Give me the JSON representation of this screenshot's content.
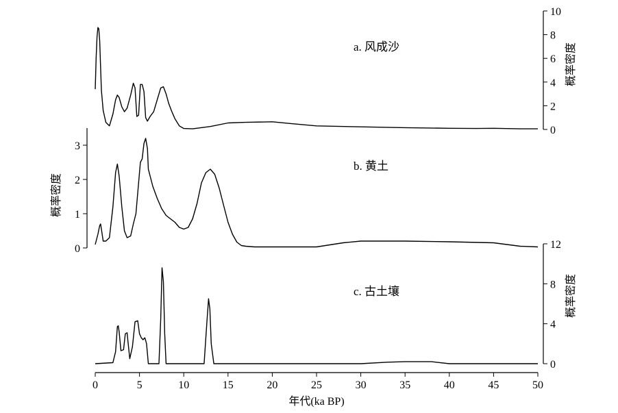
{
  "chart_data": {
    "type": "line",
    "xlabel": "年代(ka BP)",
    "xlim": [
      0,
      50
    ],
    "xticks": [
      "0",
      "5",
      "10",
      "15",
      "20",
      "25",
      "30",
      "35",
      "40",
      "45",
      "50"
    ],
    "panels": [
      {
        "title": "a. 风成沙",
        "ylabel": "概率密度",
        "yaxis_side": "right",
        "ylim": [
          0,
          10
        ],
        "yticks": [
          "0",
          "2",
          "4",
          "6",
          "8",
          "10"
        ],
        "x": [
          0.0,
          0.1,
          0.2,
          0.3,
          0.4,
          0.5,
          0.6,
          0.7,
          0.9,
          1.2,
          1.6,
          2.0,
          2.3,
          2.5,
          2.7,
          3.0,
          3.3,
          3.6,
          4.0,
          4.3,
          4.5,
          4.7,
          4.9,
          5.1,
          5.3,
          5.5,
          5.7,
          5.9,
          6.2,
          6.6,
          7.0,
          7.4,
          7.7,
          8.0,
          8.3,
          8.6,
          9.0,
          9.5,
          10.0,
          11.0,
          13.0,
          15.0,
          17.0,
          20.0,
          22.0,
          25.0,
          30.0,
          35.0,
          40.0,
          43.0,
          45.0,
          48.0,
          50.0
        ],
        "values": [
          3.4,
          6.0,
          7.8,
          8.6,
          8.5,
          7.5,
          5.3,
          3.3,
          1.6,
          0.6,
          0.3,
          1.3,
          2.5,
          2.9,
          2.7,
          1.9,
          1.5,
          1.8,
          2.9,
          3.9,
          3.5,
          1.1,
          1.2,
          3.8,
          3.8,
          3.2,
          1.0,
          0.7,
          1.1,
          1.5,
          2.5,
          3.5,
          3.6,
          3.0,
          2.2,
          1.6,
          0.9,
          0.3,
          0.08,
          0.05,
          0.25,
          0.55,
          0.6,
          0.65,
          0.5,
          0.3,
          0.22,
          0.15,
          0.1,
          0.08,
          0.1,
          0.05,
          0.05
        ]
      },
      {
        "title": "b. 黄土",
        "ylabel": "概率密度",
        "yaxis_side": "left",
        "ylim": [
          0,
          3.5
        ],
        "yticks": [
          "0",
          "1",
          "2",
          "3"
        ],
        "x": [
          0.0,
          0.3,
          0.5,
          0.6,
          0.7,
          0.9,
          1.2,
          1.6,
          2.0,
          2.3,
          2.5,
          2.7,
          3.0,
          3.3,
          3.6,
          4.0,
          4.3,
          4.6,
          4.9,
          5.1,
          5.3,
          5.5,
          5.7,
          5.9,
          6.0,
          6.2,
          6.5,
          7.0,
          7.5,
          8.0,
          8.5,
          9.0,
          9.5,
          10.0,
          10.5,
          11.0,
          11.5,
          12.0,
          12.5,
          13.0,
          13.5,
          14.0,
          14.5,
          15.0,
          15.5,
          16.0,
          16.5,
          17.0,
          18.0,
          20.0,
          22.0,
          25.0,
          28.0,
          30.0,
          35.0,
          40.0,
          45.0,
          48.0,
          50.0
        ],
        "values": [
          0.1,
          0.4,
          0.65,
          0.7,
          0.55,
          0.2,
          0.2,
          0.3,
          1.2,
          2.2,
          2.45,
          2.1,
          1.2,
          0.5,
          0.3,
          0.35,
          0.7,
          1.0,
          1.9,
          2.5,
          2.6,
          3.05,
          3.2,
          2.9,
          2.3,
          2.1,
          1.8,
          1.45,
          1.15,
          0.95,
          0.85,
          0.75,
          0.6,
          0.55,
          0.6,
          0.85,
          1.3,
          1.9,
          2.2,
          2.3,
          2.15,
          1.75,
          1.25,
          0.75,
          0.4,
          0.17,
          0.07,
          0.05,
          0.03,
          0.03,
          0.03,
          0.03,
          0.15,
          0.2,
          0.2,
          0.18,
          0.15,
          0.05,
          0.03
        ]
      },
      {
        "title": "c. 古土壤",
        "ylabel": "概率密度",
        "yaxis_side": "right",
        "ylim": [
          0,
          12
        ],
        "yticks": [
          "0",
          "4",
          "8",
          "12"
        ],
        "x": [
          0.0,
          2.0,
          2.3,
          2.5,
          2.6,
          2.7,
          2.9,
          3.2,
          3.4,
          3.6,
          3.7,
          3.9,
          4.2,
          4.5,
          4.8,
          5.0,
          5.2,
          5.4,
          5.6,
          5.8,
          6.0,
          7.2,
          7.4,
          7.55,
          7.7,
          7.85,
          8.0,
          8.2,
          12.3,
          12.6,
          12.8,
          12.95,
          13.1,
          13.4,
          16.0,
          30.0,
          33.0,
          35.0,
          38.0,
          40.0,
          50.0
        ],
        "values": [
          0.0,
          0.1,
          1.2,
          3.7,
          3.8,
          3.2,
          1.3,
          1.4,
          3.0,
          3.1,
          2.2,
          0.5,
          1.7,
          4.2,
          4.3,
          3.0,
          2.6,
          2.4,
          2.6,
          2.0,
          0.0,
          0.0,
          4.5,
          9.6,
          8.2,
          3.0,
          0.0,
          0.0,
          0.0,
          4.0,
          6.5,
          5.5,
          2.0,
          0.0,
          0.0,
          0.0,
          0.15,
          0.2,
          0.2,
          0.0,
          0.0
        ]
      }
    ]
  }
}
